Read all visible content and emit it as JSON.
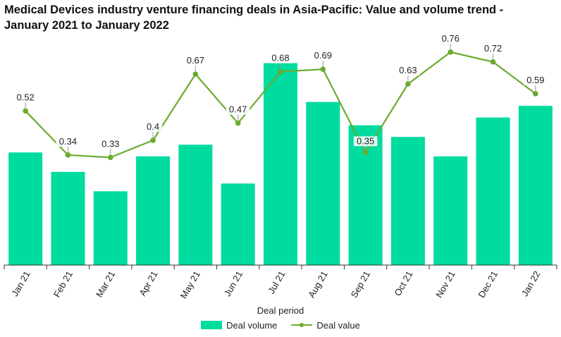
{
  "title_line1": "Medical Devices industry venture financing deals in Asia-Pacific: Value and volume trend -",
  "title_line2": "January 2021 to January 2022",
  "colors": {
    "bar": "#00dba0",
    "line": "#6aab2e",
    "axis": "#333333",
    "label_line": "#999999"
  },
  "legend": {
    "volume_label": "Deal volume",
    "value_label": "Deal value"
  },
  "chart_data": {
    "type": "bar",
    "title": "Medical Devices industry venture financing deals in Asia-Pacific: Value and volume trend - January 2021 to January 2022",
    "xlabel": "Deal period",
    "categories": [
      "Jan 21",
      "Feb 21",
      "Mar 21",
      "Apr 21",
      "May 21",
      "Jun 21",
      "Jul 21",
      "Aug 21",
      "Sep 21",
      "Oct 21",
      "Nov 21",
      "Dec 21",
      "Jan 22"
    ],
    "series": [
      {
        "name": "Deal volume",
        "type": "bar",
        "values": [
          58,
          48,
          38,
          56,
          62,
          42,
          104,
          84,
          72,
          66,
          56,
          76,
          82
        ]
      },
      {
        "name": "Deal value",
        "type": "line",
        "values": [
          0.52,
          0.34,
          0.33,
          0.4,
          0.67,
          0.47,
          0.68,
          0.69,
          0.35,
          0.63,
          0.76,
          0.72,
          0.59
        ],
        "labels": [
          "0.52",
          "0.34",
          "0.33",
          "0.4",
          "0.67",
          "0.47",
          "0.68",
          "0.69",
          "0.35",
          "0.63",
          "0.76",
          "0.72",
          "0.59"
        ]
      }
    ],
    "legend_position": "bottom",
    "grid": false
  }
}
